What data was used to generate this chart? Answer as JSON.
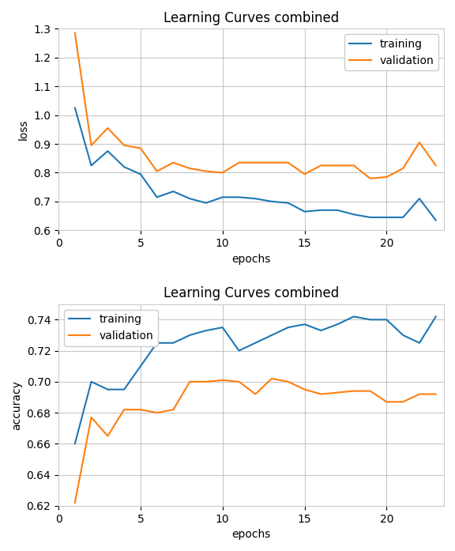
{
  "title": "Learning Curves combined",
  "loss": {
    "epochs": [
      1,
      2,
      3,
      4,
      5,
      6,
      7,
      8,
      9,
      10,
      11,
      12,
      13,
      14,
      15,
      16,
      17,
      18,
      19,
      20,
      21,
      22,
      23
    ],
    "training": [
      1.025,
      0.825,
      0.875,
      0.82,
      0.795,
      0.715,
      0.735,
      0.71,
      0.695,
      0.715,
      0.715,
      0.71,
      0.7,
      0.695,
      0.665,
      0.67,
      0.67,
      0.655,
      0.645,
      0.645,
      0.645,
      0.71,
      0.635
    ],
    "validation": [
      1.285,
      0.895,
      0.955,
      0.895,
      0.885,
      0.805,
      0.835,
      0.815,
      0.805,
      0.8,
      0.835,
      0.835,
      0.835,
      0.835,
      0.795,
      0.825,
      0.825,
      0.825,
      0.78,
      0.785,
      0.815,
      0.905,
      0.825
    ],
    "ylabel": "loss",
    "xlabel": "epochs",
    "ylim": [
      0.6,
      1.3
    ],
    "yticks": [
      0.6,
      0.7,
      0.8,
      0.9,
      1.0,
      1.1,
      1.2,
      1.3
    ],
    "xticks": [
      0,
      5,
      10,
      15,
      20
    ]
  },
  "accuracy": {
    "epochs": [
      1,
      2,
      3,
      4,
      5,
      6,
      7,
      8,
      9,
      10,
      11,
      12,
      13,
      14,
      15,
      16,
      17,
      18,
      19,
      20,
      21,
      22,
      23
    ],
    "training": [
      0.66,
      0.7,
      0.695,
      0.695,
      0.71,
      0.725,
      0.725,
      0.73,
      0.733,
      0.735,
      0.72,
      0.725,
      0.73,
      0.735,
      0.737,
      0.733,
      0.737,
      0.742,
      0.74,
      0.74,
      0.73,
      0.725,
      0.742
    ],
    "validation": [
      0.622,
      0.677,
      0.665,
      0.682,
      0.682,
      0.68,
      0.682,
      0.7,
      0.7,
      0.701,
      0.7,
      0.692,
      0.702,
      0.7,
      0.695,
      0.692,
      0.693,
      0.694,
      0.694,
      0.687,
      0.687,
      0.692,
      0.692
    ],
    "ylabel": "accuracy",
    "xlabel": "epochs",
    "ylim": [
      0.62,
      0.75
    ],
    "yticks": [
      0.62,
      0.64,
      0.66,
      0.68,
      0.7,
      0.72,
      0.74
    ],
    "xticks": [
      0,
      5,
      10,
      15,
      20
    ]
  },
  "training_color": "#1f77b4",
  "validation_color": "#ff7f0e",
  "figure_facecolor": "#ffffff",
  "axes_facecolor": "#ffffff",
  "grid_color": "#b0b0b0",
  "grid_alpha": 0.7,
  "spine_color": "#cccccc",
  "line_width": 1.5,
  "title_fontsize": 12,
  "label_fontsize": 10,
  "tick_fontsize": 10,
  "legend_fontsize": 10
}
